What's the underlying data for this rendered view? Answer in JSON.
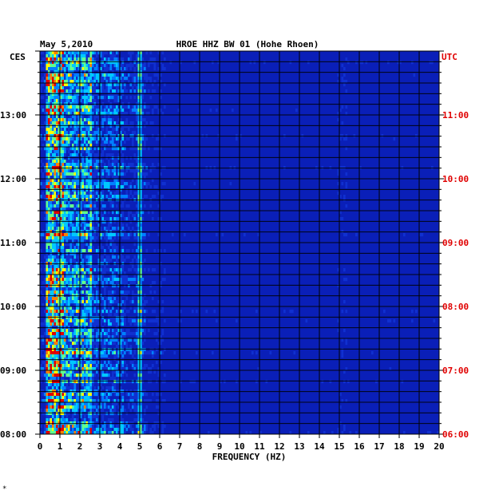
{
  "chart_data": {
    "type": "heatmap",
    "title": "HROE HHZ BW 01 (Hohe Rhoen)",
    "date": "May 5,2010",
    "xlabel": "FREQUENCY (HZ)",
    "xlim": [
      0,
      20
    ],
    "x_ticks": [
      0,
      1,
      2,
      3,
      4,
      5,
      6,
      7,
      8,
      9,
      10,
      11,
      12,
      13,
      14,
      15,
      16,
      17,
      18,
      19,
      20
    ],
    "left_axis": {
      "label": "CES",
      "ticks": [
        "08:00",
        "09:00",
        "10:00",
        "11:00",
        "12:00",
        "13:00"
      ],
      "color": "#000000"
    },
    "right_axis": {
      "label": "UTC",
      "ticks": [
        "06:00",
        "07:00",
        "08:00",
        "09:00",
        "10:00",
        "11:00"
      ],
      "color": "#e00000"
    },
    "ylim_hours_local": [
      8.0,
      14.0
    ],
    "colors": {
      "background": "#0a1fb8",
      "low": "#1030d0",
      "mid": "#00c8ff",
      "high": "#ffff00",
      "max": "#e00000"
    },
    "corner_mark": "*"
  }
}
